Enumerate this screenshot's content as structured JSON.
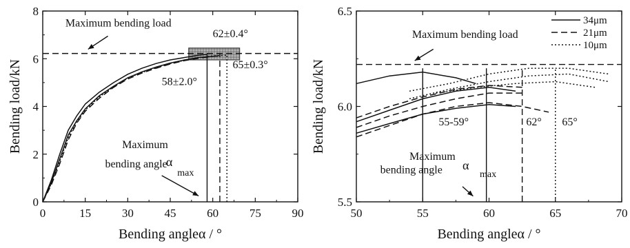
{
  "chart_data": [
    {
      "type": "line",
      "xlabel": "Bending angleα / °",
      "ylabel": "Bending load/kN",
      "xlim": [
        0,
        90
      ],
      "ylim": [
        0,
        8
      ],
      "xticks": [
        0,
        15,
        30,
        45,
        60,
        75,
        90
      ],
      "xtick_labels": [
        "0",
        "15",
        "30",
        "45",
        "60",
        "75",
        "90"
      ],
      "yticks": [
        0,
        2,
        4,
        6,
        8
      ],
      "ytick_labels": [
        "0",
        "2",
        "4",
        "6",
        "8"
      ],
      "grid": false,
      "series": [
        {
          "style": "solid",
          "x": [
            0,
            3,
            6,
            9,
            12,
            15,
            20,
            25,
            30,
            35,
            40,
            45,
            50,
            55,
            58
          ],
          "y": [
            0,
            0.9,
            2.0,
            3.0,
            3.6,
            4.1,
            4.6,
            5.0,
            5.35,
            5.6,
            5.8,
            5.95,
            6.05,
            6.15,
            6.18
          ]
        },
        {
          "style": "solid",
          "x": [
            0,
            3,
            6,
            9,
            12,
            15,
            20,
            25,
            30,
            35,
            40,
            45,
            50,
            55,
            60,
            62
          ],
          "y": [
            0,
            0.8,
            1.8,
            2.8,
            3.4,
            3.9,
            4.45,
            4.85,
            5.2,
            5.45,
            5.65,
            5.82,
            5.95,
            6.05,
            6.1,
            6.12
          ]
        },
        {
          "style": "dashed",
          "x": [
            0,
            3,
            6,
            9,
            12,
            15,
            20,
            25,
            30,
            35,
            40,
            45,
            50,
            55,
            60,
            63
          ],
          "y": [
            0,
            0.7,
            1.6,
            2.6,
            3.3,
            3.8,
            4.35,
            4.8,
            5.15,
            5.4,
            5.6,
            5.78,
            5.92,
            6.02,
            6.1,
            6.12
          ]
        },
        {
          "style": "dotted",
          "x": [
            0,
            3,
            6,
            9,
            12,
            15,
            20,
            25,
            30,
            35,
            40,
            45,
            50,
            55,
            60,
            65
          ],
          "y": [
            0,
            0.75,
            1.7,
            2.7,
            3.35,
            3.85,
            4.4,
            4.82,
            5.18,
            5.42,
            5.62,
            5.8,
            5.93,
            6.04,
            6.12,
            6.15
          ]
        }
      ],
      "reference_lines": [
        {
          "orientation": "horizontal",
          "style": "dashed",
          "value": 6.22
        },
        {
          "orientation": "vertical",
          "style": "solid",
          "value": 58
        },
        {
          "orientation": "vertical",
          "style": "dashed",
          "value": 62.5
        },
        {
          "orientation": "vertical",
          "style": "dotted",
          "value": 65
        }
      ],
      "highlight_box": {
        "x": [
          51.5,
          69.5
        ],
        "y": [
          5.95,
          6.45
        ]
      },
      "annotations": [
        {
          "text": "Maximum bending load",
          "x": 8,
          "y": 7.35
        },
        {
          "text": "62±0.4°",
          "x": 60,
          "y": 6.9
        },
        {
          "text": "58±2.0°",
          "x": 42,
          "y": 4.9
        },
        {
          "text": "65±0.3°",
          "x": 67,
          "y": 5.6
        },
        {
          "text": "Maximum",
          "x": 28,
          "y": 2.25
        },
        {
          "text": "bending angle",
          "x": 22,
          "y": 1.45
        },
        {
          "text": "α",
          "x": 43.5,
          "y": 1.5
        },
        {
          "text": "max",
          "x": 47.5,
          "y": 1.1
        }
      ],
      "arrows": [
        {
          "from": [
            23,
            6.95
          ],
          "to": [
            16,
            6.4
          ]
        },
        {
          "from": [
            42,
            1.1
          ],
          "to": [
            55,
            0.25
          ]
        }
      ]
    },
    {
      "type": "line",
      "xlabel": "Bending angleα / °",
      "ylabel": "Bending load/kN",
      "xlim": [
        50,
        70
      ],
      "ylim": [
        5.5,
        6.5
      ],
      "xticks": [
        50,
        55,
        60,
        65,
        70
      ],
      "xtick_labels": [
        "50",
        "55",
        "60",
        "65",
        "70"
      ],
      "yticks": [
        5.5,
        6.0,
        6.5
      ],
      "ytick_labels": [
        "5.5",
        "6.0",
        "6.5"
      ],
      "grid": false,
      "legend": {
        "placement": "top-right",
        "entries": [
          {
            "name": "34μm",
            "style": "solid"
          },
          {
            "name": "21μm",
            "style": "dashed"
          },
          {
            "name": "10μm",
            "style": "dotted"
          }
        ]
      },
      "series": [
        {
          "name": "34μm",
          "style": "solid",
          "x": [
            50,
            52.5,
            55,
            57.5,
            59
          ],
          "y": [
            6.12,
            6.16,
            6.18,
            6.15,
            6.12
          ]
        },
        {
          "name": "34μm",
          "style": "solid",
          "x": [
            50,
            52.5,
            55,
            57.5,
            60,
            62
          ],
          "y": [
            5.92,
            5.98,
            6.04,
            6.08,
            6.1,
            6.08
          ]
        },
        {
          "name": "34μm",
          "style": "solid",
          "x": [
            50,
            52.5,
            55,
            57.5,
            60,
            62
          ],
          "y": [
            5.86,
            5.91,
            5.96,
            5.99,
            6.01,
            6.0
          ]
        },
        {
          "name": "21μm",
          "style": "dashed",
          "x": [
            50,
            52.5,
            55,
            57.5,
            60,
            62.5
          ],
          "y": [
            5.94,
            6.0,
            6.05,
            6.09,
            6.11,
            6.1
          ]
        },
        {
          "name": "21μm",
          "style": "dashed",
          "x": [
            50,
            52.5,
            55,
            57.5,
            60,
            62.5
          ],
          "y": [
            5.89,
            5.95,
            6.0,
            6.04,
            6.07,
            6.07
          ]
        },
        {
          "name": "21μm",
          "style": "dashed",
          "x": [
            50,
            52.5,
            55,
            57.5,
            60,
            62.5,
            64.5
          ],
          "y": [
            5.84,
            5.9,
            5.96,
            6.0,
            6.02,
            6.0,
            5.97
          ]
        },
        {
          "name": "10μm",
          "style": "dotted",
          "x": [
            54,
            57,
            60,
            63,
            66,
            69
          ],
          "y": [
            6.08,
            6.12,
            6.17,
            6.2,
            6.2,
            6.17
          ]
        },
        {
          "name": "10μm",
          "style": "dotted",
          "x": [
            54,
            57,
            60,
            63,
            66,
            69
          ],
          "y": [
            6.04,
            6.09,
            6.13,
            6.16,
            6.17,
            6.13
          ]
        },
        {
          "name": "10μm",
          "style": "dotted",
          "x": [
            56,
            59,
            62,
            65,
            68
          ],
          "y": [
            6.07,
            6.1,
            6.12,
            6.13,
            6.1
          ]
        }
      ],
      "reference_lines": [
        {
          "orientation": "horizontal",
          "style": "dashed",
          "value": 6.22
        },
        {
          "orientation": "vertical",
          "style": "solid",
          "value": 55
        },
        {
          "orientation": "vertical",
          "style": "solid",
          "value": 59.8
        },
        {
          "orientation": "vertical",
          "style": "dashed",
          "value": 62.5
        },
        {
          "orientation": "vertical",
          "style": "dotted",
          "value": 65
        }
      ],
      "annotations": [
        {
          "text": "Maximum bending load",
          "x": 54.2,
          "y": 6.36
        },
        {
          "text": "55-59°",
          "x": 56.2,
          "y": 5.9
        },
        {
          "text": "62°",
          "x": 62.8,
          "y": 5.9
        },
        {
          "text": "65°",
          "x": 65.5,
          "y": 5.9
        },
        {
          "text": "Maximum",
          "x": 54.0,
          "y": 5.72
        },
        {
          "text": "bending angle",
          "x": 51.8,
          "y": 5.65
        },
        {
          "text": "α",
          "x": 58.0,
          "y": 5.67
        },
        {
          "text": "max",
          "x": 59.3,
          "y": 5.63
        }
      ],
      "arrows": [
        {
          "from": [
            55.8,
            6.3
          ],
          "to": [
            54.4,
            6.24
          ]
        },
        {
          "from": [
            58.0,
            5.58
          ],
          "to": [
            58.8,
            5.53
          ]
        }
      ]
    }
  ]
}
